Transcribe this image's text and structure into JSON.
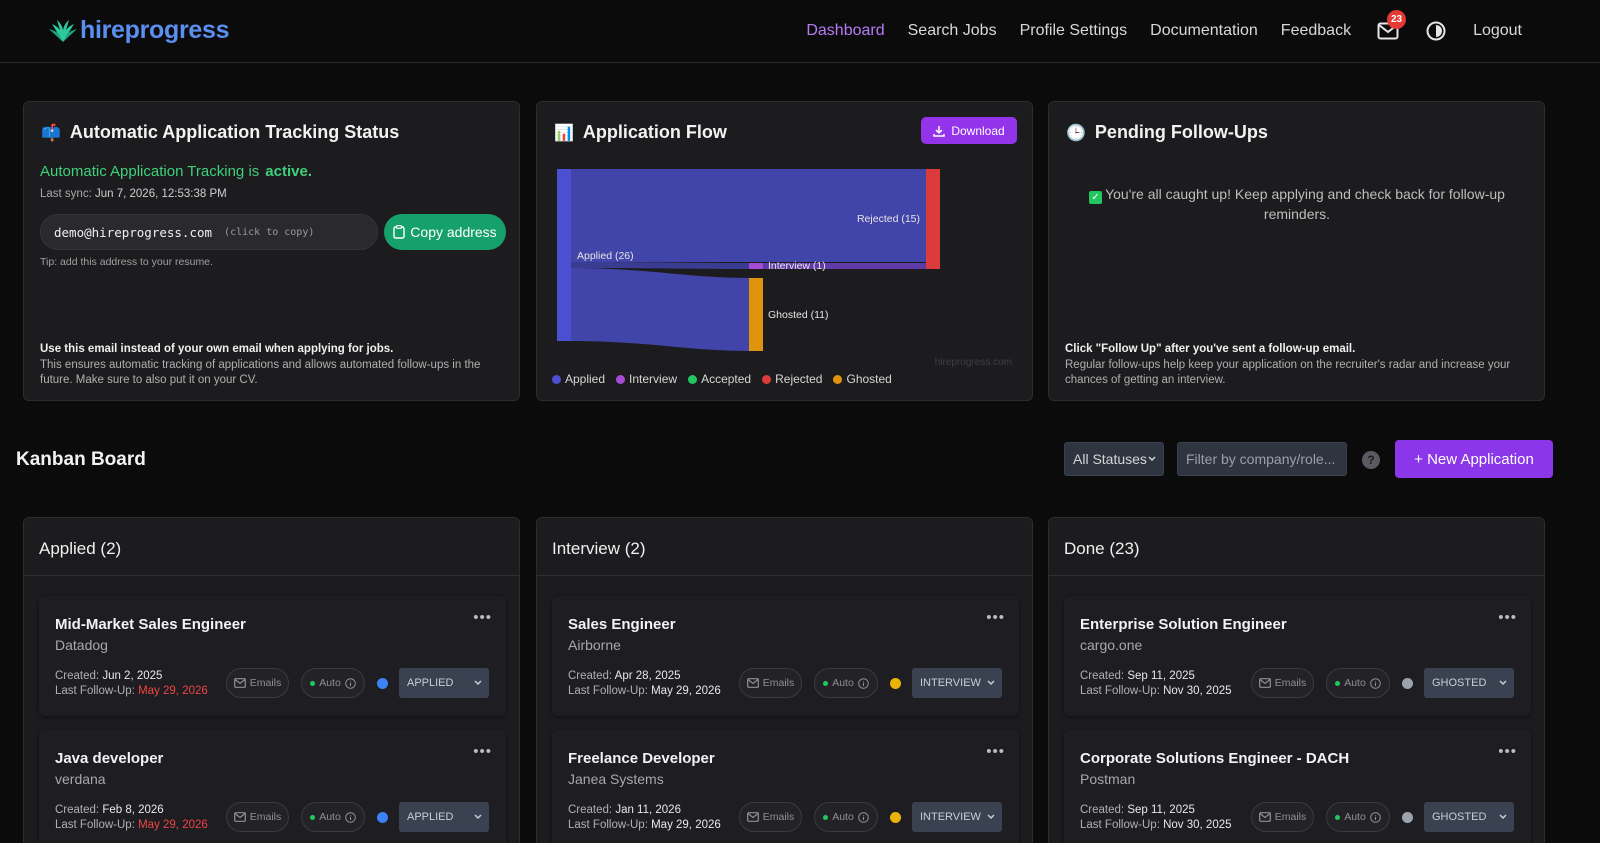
{
  "nav": {
    "logo_text": "hireprogress",
    "links": [
      "Dashboard",
      "Search Jobs",
      "Profile Settings",
      "Documentation",
      "Feedback"
    ],
    "active": "Dashboard",
    "mail_badge": "23",
    "logout": "Logout",
    "accent_color": "#b57cf5"
  },
  "tracking": {
    "title": "Automatic Application Tracking Status",
    "active_prefix": "Automatic Application Tracking is",
    "active_word": "active.",
    "sync_label": "Last sync:",
    "sync_value": "Jun 7, 2026, 12:53:38 PM",
    "email": "demo@hireprogress.com",
    "email_hint": "(click to copy)",
    "copy_label": "Copy address",
    "tip": "Tip: add this address to your resume.",
    "footer_bold": "Use this email instead of your own email when applying for jobs.",
    "footer_text": "This ensures automatic tracking of applications and allows automated follow-ups in the future. Make sure to also put it on your CV."
  },
  "flow": {
    "title": "Application Flow",
    "download_label": "Download",
    "watermark": "hireprogress.com",
    "nodes": {
      "applied": "Applied (26)",
      "rejected": "Rejected (15)",
      "interview": "Interview (1)",
      "ghosted": "Ghosted (11)"
    },
    "legend": [
      "Applied",
      "Interview",
      "Accepted",
      "Rejected",
      "Ghosted"
    ],
    "colors": {
      "applied": "#4b4fd1",
      "interview": "#a64bd6",
      "accepted": "#22c55e",
      "rejected": "#dc3b3b",
      "ghosted": "#e0930c"
    }
  },
  "followups": {
    "title": "Pending Follow-Ups",
    "caught_up": "You're all caught up! Keep applying and check back for follow-up reminders.",
    "footer_bold": "Click \"Follow Up\" after you've sent a follow-up email.",
    "footer_text": "Regular follow-ups help keep your application on the recruiter's radar and increase your chances of getting an interview."
  },
  "kanban": {
    "title": "Kanban Board",
    "status_filter": "All Statuses",
    "filter_placeholder": "Filter by company/role...",
    "help": "?",
    "new_label": "+ New Application",
    "labels": {
      "created": "Created:",
      "last_followup": "Last Follow-Up:",
      "emails": "Emails",
      "auto": "Auto"
    },
    "columns": [
      {
        "title": "Applied (2)",
        "jobs": [
          {
            "title": "Mid-Market Sales Engineer",
            "company": "Datadog",
            "created": "Jun 2, 2025",
            "followup": "May 29, 2026",
            "followup_overdue": true,
            "status": "APPLIED",
            "status_color": "#3b82f6"
          },
          {
            "title": "Java developer",
            "company": "verdana",
            "created": "Feb 8, 2026",
            "followup": "May 29, 2026",
            "followup_overdue": true,
            "status": "APPLIED",
            "status_color": "#3b82f6"
          }
        ]
      },
      {
        "title": "Interview (2)",
        "jobs": [
          {
            "title": "Sales Engineer",
            "company": "Airborne",
            "created": "Apr 28, 2025",
            "followup": "May 29, 2026",
            "followup_overdue": false,
            "status": "INTERVIEW",
            "status_color": "#eab308"
          },
          {
            "title": "Freelance Developer",
            "company": "Janea Systems",
            "created": "Jan 11, 2026",
            "followup": "May 29, 2026",
            "followup_overdue": false,
            "status": "INTERVIEW",
            "status_color": "#eab308"
          }
        ]
      },
      {
        "title": "Done (23)",
        "jobs": [
          {
            "title": "Enterprise Solution Engineer",
            "company": "cargo.one",
            "created": "Sep 11, 2025",
            "followup": "Nov 30, 2025",
            "followup_overdue": false,
            "status": "GHOSTED",
            "status_color": "#9ca3af"
          },
          {
            "title": "Corporate Solutions Engineer - DACH",
            "company": "Postman",
            "created": "Sep 11, 2025",
            "followup": "Nov 30, 2025",
            "followup_overdue": false,
            "status": "GHOSTED",
            "status_color": "#9ca3af"
          }
        ]
      }
    ]
  }
}
